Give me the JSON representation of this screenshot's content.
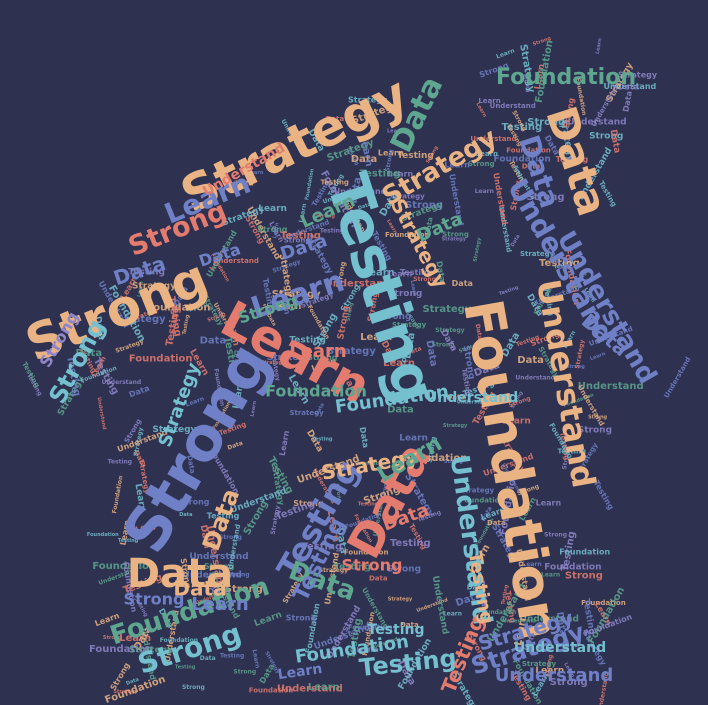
{
  "title": "",
  "palette": {
    "background": "#2e3150",
    "peach": "#e9b384",
    "salmon": "#e47b6f",
    "teal": "#74c0cf",
    "blue": "#6f80c6",
    "green": "#5ea68f",
    "lavender": "#8f86c9"
  },
  "shape": "house",
  "vocabulary": [
    "Data",
    "Strong",
    "Strategy",
    "Testing",
    "Learn",
    "Understand",
    "Foundation"
  ],
  "words": [
    {
      "text": "Strong",
      "color": "peach"
    },
    {
      "text": "Strategy",
      "color": "peach"
    },
    {
      "text": "Data",
      "color": "green"
    },
    {
      "text": "Strong",
      "color": "salmon"
    },
    {
      "text": "Strong",
      "color": "teal"
    },
    {
      "text": "Data",
      "color": "blue"
    },
    {
      "text": "Learn",
      "color": "blue"
    },
    {
      "text": "Strategy",
      "color": "peach"
    },
    {
      "text": "Foundation",
      "color": "green"
    },
    {
      "text": "Data",
      "color": "peach"
    },
    {
      "text": "Data",
      "color": "blue"
    },
    {
      "text": "Understand",
      "color": "blue"
    },
    {
      "text": "Testing",
      "color": "teal"
    },
    {
      "text": "Learn",
      "color": "blue"
    },
    {
      "text": "Learn",
      "color": "salmon"
    },
    {
      "text": "Learn",
      "color": "salmon"
    },
    {
      "text": "Strong",
      "color": "blue"
    },
    {
      "text": "Strategy",
      "color": "peach"
    },
    {
      "text": "Foundation",
      "color": "peach"
    },
    {
      "text": "Understand",
      "color": "peach"
    },
    {
      "text": "Understand",
      "color": "blue"
    },
    {
      "text": "Data",
      "color": "salmon"
    },
    {
      "text": "Testing",
      "color": "blue"
    },
    {
      "text": "Data",
      "color": "peach"
    },
    {
      "text": "Foundation",
      "color": "green"
    },
    {
      "text": "Strong",
      "color": "teal"
    },
    {
      "text": "Data",
      "color": "peach"
    },
    {
      "text": "Strategy",
      "color": "blue"
    },
    {
      "text": "Testing",
      "color": "teal"
    },
    {
      "text": "Understand",
      "color": "blue"
    },
    {
      "text": "Foundation",
      "color": "teal"
    },
    {
      "text": "Understand",
      "color": "teal"
    },
    {
      "text": "Data",
      "color": "green"
    },
    {
      "text": "Learn",
      "color": "blue"
    },
    {
      "text": "Testing",
      "color": "blue"
    },
    {
      "text": "Strategy",
      "color": "peach"
    },
    {
      "text": "Data",
      "color": "green"
    },
    {
      "text": "Strategy",
      "color": "teal"
    },
    {
      "text": "Strong",
      "color": "salmon"
    },
    {
      "text": "Understand",
      "color": "teal"
    },
    {
      "text": "Learn",
      "color": "green"
    },
    {
      "text": "Testing",
      "color": "salmon"
    },
    {
      "text": "Data",
      "color": "blue"
    },
    {
      "text": "Foundation",
      "color": "teal"
    },
    {
      "text": "Understand",
      "color": "salmon"
    },
    {
      "text": "Learn",
      "color": "green"
    },
    {
      "text": "Strong",
      "color": "blue"
    },
    {
      "text": "Data",
      "color": "salmon"
    },
    {
      "text": "Strong",
      "color": "lavender"
    },
    {
      "text": "Testing",
      "color": "peach"
    },
    {
      "text": "Data",
      "color": "blue"
    },
    {
      "text": "Foundation",
      "color": "green"
    },
    {
      "text": "Data",
      "color": "peach"
    },
    {
      "text": "Strong",
      "color": "green"
    },
    {
      "text": "Data",
      "color": "blue"
    },
    {
      "text": "Strategy",
      "color": "blue"
    },
    {
      "text": "Learn",
      "color": "blue"
    },
    {
      "text": "Understand",
      "color": "teal"
    },
    {
      "text": "Testing",
      "color": "teal"
    }
  ]
}
